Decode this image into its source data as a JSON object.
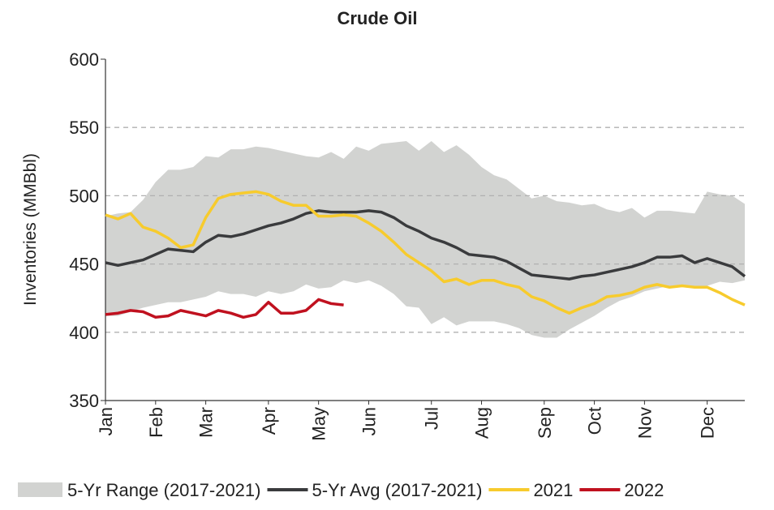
{
  "chart_data": {
    "type": "line",
    "title": "Crude Oil",
    "y_label": "Inventories (MMBbl)",
    "x": [
      1,
      2,
      3,
      4,
      5,
      6,
      7,
      8,
      9,
      10,
      11,
      12,
      13,
      14,
      15,
      16,
      17,
      18,
      19,
      20,
      21,
      22,
      23,
      24,
      25,
      26,
      27,
      28,
      29,
      30,
      31,
      32,
      33,
      34,
      35,
      36,
      37,
      38,
      39,
      40,
      41,
      42,
      43,
      44,
      45,
      46,
      47,
      48,
      49,
      50,
      51,
      52
    ],
    "xlim": [
      1,
      52
    ],
    "xticks": [
      {
        "value": 1,
        "label": "Jan"
      },
      {
        "value": 5,
        "label": "Feb"
      },
      {
        "value": 9,
        "label": "Mar"
      },
      {
        "value": 14,
        "label": "Apr"
      },
      {
        "value": 18,
        "label": "May"
      },
      {
        "value": 22,
        "label": "Jun"
      },
      {
        "value": 27,
        "label": "Jul"
      },
      {
        "value": 31,
        "label": "Aug"
      },
      {
        "value": 36,
        "label": "Sep"
      },
      {
        "value": 40,
        "label": "Oct"
      },
      {
        "value": 44,
        "label": "Nov"
      },
      {
        "value": 49,
        "label": "Dec"
      }
    ],
    "ylim": [
      350,
      600
    ],
    "yticks": [
      350,
      400,
      450,
      500,
      550,
      600
    ],
    "grid": true,
    "legend": "bottom",
    "range": {
      "name": "5-Yr Range (2017-2021)",
      "color": "#d2d3d1",
      "upper": [
        485,
        487,
        488,
        497,
        510,
        519,
        519,
        521,
        529,
        528,
        534,
        534,
        536,
        535,
        533,
        531,
        529,
        528,
        532,
        527,
        536,
        533,
        538,
        539,
        540,
        533,
        540,
        532,
        537,
        530,
        521,
        515,
        512,
        505,
        498,
        500,
        496,
        495,
        493,
        494,
        490,
        488,
        491,
        484,
        489,
        489,
        488,
        487,
        503,
        501,
        500,
        494
      ],
      "lower": [
        412,
        412,
        415,
        418,
        420,
        422,
        422,
        424,
        426,
        430,
        428,
        428,
        426,
        430,
        428,
        430,
        435,
        432,
        433,
        438,
        436,
        438,
        434,
        428,
        419,
        418,
        406,
        411,
        405,
        408,
        408,
        408,
        406,
        403,
        398,
        396,
        396,
        402,
        407,
        412,
        418,
        423,
        426,
        430,
        432,
        434,
        433,
        434,
        434,
        437,
        436,
        438
      ]
    },
    "series": [
      {
        "name": "5-Yr Avg (2017-2021)",
        "color": "#3a3b3d",
        "values": [
          451,
          449,
          451,
          453,
          457,
          461,
          460,
          459,
          466,
          471,
          470,
          472,
          475,
          478,
          480,
          483,
          487,
          489,
          488,
          488,
          488,
          489,
          488,
          484,
          478,
          474,
          469,
          466,
          462,
          457,
          456,
          455,
          452,
          447,
          442,
          441,
          440,
          439,
          441,
          442,
          444,
          446,
          448,
          451,
          455,
          455,
          456,
          451,
          454,
          451,
          448,
          441
        ]
      },
      {
        "name": "2021",
        "color": "#f7cb2d",
        "values": [
          486,
          483,
          487,
          477,
          474,
          469,
          462,
          464,
          484,
          498,
          501,
          502,
          503,
          501,
          496,
          493,
          493,
          485,
          485,
          486,
          485,
          480,
          474,
          466,
          457,
          451,
          445,
          437,
          439,
          435,
          438,
          438,
          435,
          433,
          426,
          423,
          418,
          414,
          418,
          421,
          426,
          427,
          429,
          433,
          435,
          433,
          434,
          433,
          433,
          429,
          424,
          420
        ]
      },
      {
        "name": "2022",
        "color": "#c0111f",
        "values": [
          413,
          414,
          416,
          415,
          411,
          412,
          416,
          414,
          412,
          416,
          414,
          411,
          413,
          422,
          414,
          414,
          416,
          424,
          421,
          420,
          null,
          null,
          null,
          null,
          null,
          null,
          null,
          null,
          null,
          null,
          null,
          null,
          null,
          null,
          null,
          null,
          null,
          null,
          null,
          null,
          null,
          null,
          null,
          null,
          null,
          null,
          null,
          null,
          null,
          null,
          null,
          null
        ]
      }
    ]
  }
}
